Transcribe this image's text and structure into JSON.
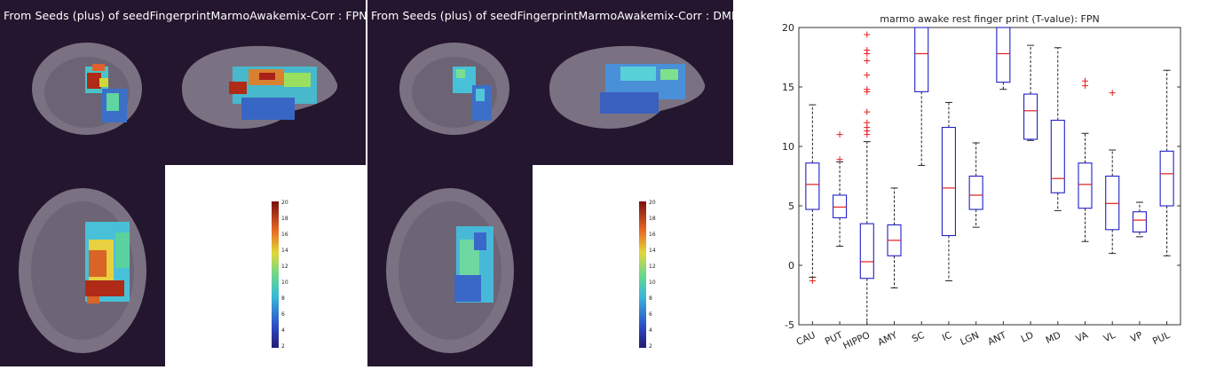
{
  "panels": [
    {
      "title": "From Seeds (plus) of seedFingerprintMarmoAwakemix-Corr : FPN",
      "colorbar_ticks": [
        "20",
        "18",
        "16",
        "14",
        "12",
        "10",
        "8",
        "6",
        "4",
        "2"
      ],
      "colorbar_range": [
        2,
        20
      ]
    },
    {
      "title": "From Seeds (plus) of seedFingerprintMarmoAwakemix-Corr : DMN",
      "colorbar_ticks": [
        "20",
        "18",
        "16",
        "14",
        "12",
        "10",
        "8",
        "6",
        "4",
        "2"
      ],
      "colorbar_range": [
        2,
        20
      ]
    }
  ],
  "colors": {
    "panel_background": "#25162f",
    "box_color": "#2020c8",
    "median_color": "#e02020",
    "outlier_color": "#e02020"
  },
  "chart_data": {
    "type": "box",
    "title": "marmo awake rest finger print (T-value): FPN",
    "xlabel": "",
    "ylabel": "",
    "ylim": [
      -5,
      20
    ],
    "yticks": [
      -5,
      0,
      5,
      10,
      15,
      20
    ],
    "grid": false,
    "legend": "none",
    "categories": [
      "CAU",
      "PUT",
      "HIPPO",
      "AMY",
      "SC",
      "IC",
      "LGN",
      "ANT",
      "LD",
      "MD",
      "VA",
      "VL",
      "VP",
      "PUL"
    ],
    "boxes": [
      {
        "min": -1.0,
        "q1": 4.7,
        "median": 6.8,
        "q3": 8.6,
        "max": 13.5,
        "outliers": [
          -1.3
        ]
      },
      {
        "min": 1.6,
        "q1": 4.0,
        "median": 4.9,
        "q3": 5.9,
        "max": 8.7,
        "outliers": [
          8.9,
          11.0
        ]
      },
      {
        "min": -5.0,
        "q1": -1.1,
        "median": 0.3,
        "q3": 3.5,
        "max": 10.4,
        "outliers": [
          11.0,
          11.3,
          11.6,
          12.0,
          12.9,
          14.6,
          14.8,
          16.0,
          17.2,
          17.8,
          18.1,
          19.4
        ]
      },
      {
        "min": -1.9,
        "q1": 0.8,
        "median": 2.1,
        "q3": 3.4,
        "max": 6.5,
        "outliers": []
      },
      {
        "min": 8.4,
        "q1": 14.6,
        "median": 17.8,
        "q3": 20.0,
        "max": 20.0,
        "outliers": []
      },
      {
        "min": -1.3,
        "q1": 2.5,
        "median": 6.5,
        "q3": 11.6,
        "max": 13.7,
        "outliers": []
      },
      {
        "min": 3.2,
        "q1": 4.7,
        "median": 5.9,
        "q3": 7.5,
        "max": 10.3,
        "outliers": []
      },
      {
        "min": 14.8,
        "q1": 15.4,
        "median": 17.8,
        "q3": 20.0,
        "max": 20.0,
        "outliers": []
      },
      {
        "min": 10.5,
        "q1": 10.6,
        "median": 13.0,
        "q3": 14.4,
        "max": 18.5,
        "outliers": []
      },
      {
        "min": 4.6,
        "q1": 6.1,
        "median": 7.3,
        "q3": 12.2,
        "max": 18.3,
        "outliers": []
      },
      {
        "min": 2.0,
        "q1": 4.8,
        "median": 6.8,
        "q3": 8.6,
        "max": 11.1,
        "outliers": [
          15.1,
          15.5
        ]
      },
      {
        "min": 1.0,
        "q1": 3.0,
        "median": 5.2,
        "q3": 7.5,
        "max": 9.7,
        "outliers": [
          14.5
        ]
      },
      {
        "min": 2.4,
        "q1": 2.8,
        "median": 3.8,
        "q3": 4.5,
        "max": 5.3,
        "outliers": []
      },
      {
        "min": 0.8,
        "q1": 5.0,
        "median": 7.7,
        "q3": 9.6,
        "max": 16.4,
        "outliers": []
      }
    ]
  }
}
